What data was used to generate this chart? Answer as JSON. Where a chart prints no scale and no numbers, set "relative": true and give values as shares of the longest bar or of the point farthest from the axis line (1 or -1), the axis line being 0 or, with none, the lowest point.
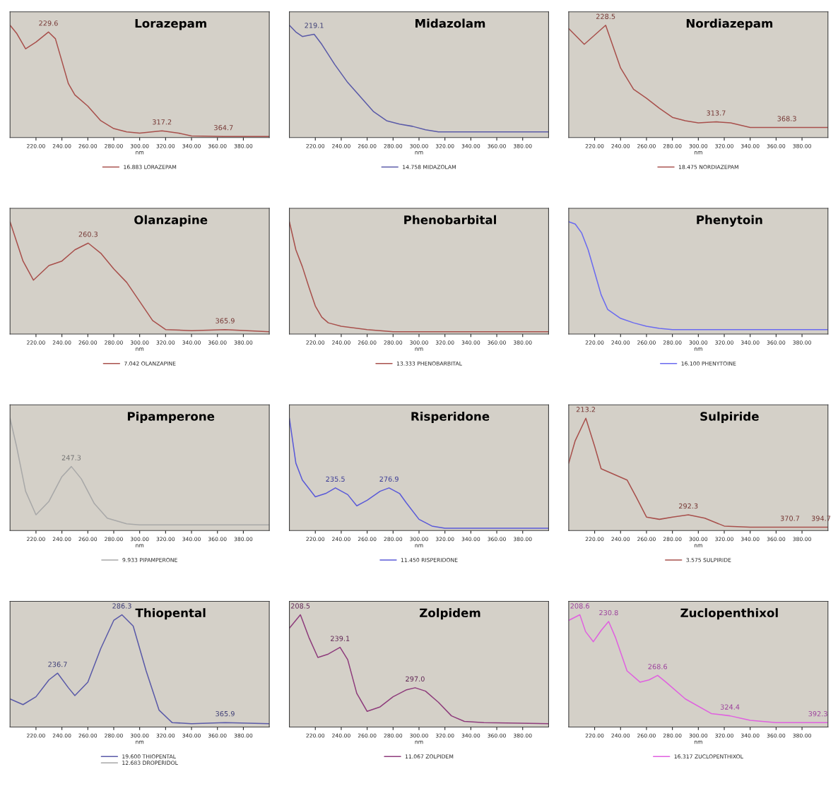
{
  "chart_data": [
    {
      "type": "line",
      "title": "Lorazepam",
      "xlabel": "nm",
      "relative": true,
      "xlim": [
        200,
        400
      ],
      "xticks": [
        {
          "value": 220,
          "label": "220.00"
        },
        {
          "value": 240,
          "label": "240.00"
        },
        {
          "value": 260,
          "label": "260.00"
        },
        {
          "value": 280,
          "label": "280.00"
        },
        {
          "value": 300,
          "label": "300.00"
        },
        {
          "value": 320,
          "label": "320.00"
        },
        {
          "value": 340,
          "label": "340.00"
        },
        {
          "value": 360,
          "label": "360.00"
        },
        {
          "value": 380,
          "label": "380.00"
        }
      ],
      "legend": "bottom",
      "series": [
        {
          "name": "16.883 LORAZEPAM",
          "color": "#a8504c",
          "x": [
            200,
            205,
            212,
            220,
            229.6,
            235,
            240,
            245,
            250,
            260,
            270,
            280,
            290,
            300,
            317.2,
            330,
            340,
            364.7,
            400
          ],
          "values": [
            1.0,
            0.93,
            0.79,
            0.85,
            0.94,
            0.88,
            0.68,
            0.48,
            0.38,
            0.28,
            0.15,
            0.08,
            0.05,
            0.04,
            0.06,
            0.04,
            0.015,
            0.01,
            0.01
          ]
        }
      ],
      "annotations": [
        {
          "text": "229.6",
          "x": 229.6,
          "y": 0.94
        },
        {
          "text": "317.2",
          "x": 317.2,
          "y": 0.06
        },
        {
          "text": "364.7",
          "x": 364.7,
          "y": 0.01
        }
      ]
    },
    {
      "type": "line",
      "title": "Midazolam",
      "xlabel": "nm",
      "relative": true,
      "xlim": [
        200,
        400
      ],
      "xticks": [
        {
          "value": 220,
          "label": "220.00"
        },
        {
          "value": 240,
          "label": "240.00"
        },
        {
          "value": 260,
          "label": "260.00"
        },
        {
          "value": 280,
          "label": "280.00"
        },
        {
          "value": 300,
          "label": "300.00"
        },
        {
          "value": 320,
          "label": "320.00"
        },
        {
          "value": 340,
          "label": "340.00"
        },
        {
          "value": 360,
          "label": "360.00"
        },
        {
          "value": 380,
          "label": "380.00"
        }
      ],
      "legend": "bottom",
      "series": [
        {
          "name": "14.758 MIDAZOLAM",
          "color": "#5a5aa8",
          "x": [
            200,
            205,
            210,
            219.1,
            225,
            235,
            245,
            255,
            265,
            275,
            285,
            295,
            305,
            315,
            400
          ],
          "values": [
            1.0,
            0.94,
            0.9,
            0.92,
            0.83,
            0.65,
            0.49,
            0.36,
            0.23,
            0.15,
            0.12,
            0.1,
            0.07,
            0.05,
            0.05
          ]
        }
      ],
      "annotations": [
        {
          "text": "219.1",
          "x": 219.1,
          "y": 0.92
        }
      ]
    },
    {
      "type": "line",
      "title": "Nordiazepam",
      "xlabel": "nm",
      "relative": true,
      "xlim": [
        200,
        400
      ],
      "xticks": [
        {
          "value": 220,
          "label": "220.00"
        },
        {
          "value": 240,
          "label": "240.00"
        },
        {
          "value": 260,
          "label": "260.00"
        },
        {
          "value": 280,
          "label": "280.00"
        },
        {
          "value": 300,
          "label": "300.00"
        },
        {
          "value": 320,
          "label": "320.00"
        },
        {
          "value": 340,
          "label": "340.00"
        },
        {
          "value": 360,
          "label": "360.00"
        },
        {
          "value": 380,
          "label": "380.00"
        }
      ],
      "legend": "bottom",
      "series": [
        {
          "name": "18.475 NORDIAZEPAM",
          "color": "#a8504c",
          "x": [
            200,
            212,
            228.5,
            240,
            250,
            260,
            270,
            280,
            290,
            300,
            313.7,
            325,
            340,
            368.3,
            400
          ],
          "values": [
            0.97,
            0.83,
            1.0,
            0.62,
            0.43,
            0.35,
            0.26,
            0.18,
            0.15,
            0.13,
            0.14,
            0.13,
            0.09,
            0.09,
            0.09
          ]
        }
      ],
      "annotations": [
        {
          "text": "228.5",
          "x": 228.5,
          "y": 1.0
        },
        {
          "text": "313.7",
          "x": 313.7,
          "y": 0.14
        },
        {
          "text": "368.3",
          "x": 368.3,
          "y": 0.09
        }
      ]
    },
    {
      "type": "line",
      "title": "Olanzapine",
      "xlabel": "nm",
      "relative": true,
      "xlim": [
        200,
        400
      ],
      "xticks": [
        {
          "value": 220,
          "label": "220.00"
        },
        {
          "value": 240,
          "label": "240.00"
        },
        {
          "value": 260,
          "label": "260.00"
        },
        {
          "value": 280,
          "label": "280.00"
        },
        {
          "value": 300,
          "label": "300.00"
        },
        {
          "value": 320,
          "label": "320.00"
        },
        {
          "value": 340,
          "label": "340.00"
        },
        {
          "value": 360,
          "label": "360.00"
        },
        {
          "value": 380,
          "label": "380.00"
        }
      ],
      "legend": "bottom",
      "series": [
        {
          "name": "7.042 OLANZAPINE",
          "color": "#a8504c",
          "x": [
            200,
            210,
            218,
            230,
            240,
            250,
            260.3,
            270,
            280,
            290,
            300,
            310,
            320,
            340,
            365.9,
            400
          ],
          "values": [
            1.0,
            0.65,
            0.48,
            0.61,
            0.65,
            0.75,
            0.81,
            0.72,
            0.58,
            0.46,
            0.29,
            0.12,
            0.04,
            0.03,
            0.04,
            0.02
          ]
        }
      ],
      "annotations": [
        {
          "text": "260.3",
          "x": 260.3,
          "y": 0.81
        },
        {
          "text": "365.9",
          "x": 365.9,
          "y": 0.04
        }
      ]
    },
    {
      "type": "line",
      "title": "Phenobarbital",
      "xlabel": "nm",
      "relative": true,
      "xlim": [
        200,
        400
      ],
      "xticks": [
        {
          "value": 220,
          "label": "220.00"
        },
        {
          "value": 240,
          "label": "240.00"
        },
        {
          "value": 260,
          "label": "260.00"
        },
        {
          "value": 280,
          "label": "280.00"
        },
        {
          "value": 300,
          "label": "300.00"
        },
        {
          "value": 320,
          "label": "320.00"
        },
        {
          "value": 340,
          "label": "340.00"
        },
        {
          "value": 360,
          "label": "360.00"
        },
        {
          "value": 380,
          "label": "380.00"
        }
      ],
      "legend": "bottom",
      "series": [
        {
          "name": "13.333 PHENOBARBITAL",
          "color": "#a8504c",
          "x": [
            200,
            205,
            210,
            215,
            220,
            225,
            230,
            240,
            260,
            280,
            400
          ],
          "values": [
            1.0,
            0.75,
            0.6,
            0.42,
            0.25,
            0.15,
            0.1,
            0.07,
            0.04,
            0.02,
            0.02
          ]
        }
      ]
    },
    {
      "type": "line",
      "title": "Phenytoin",
      "xlabel": "nm",
      "relative": true,
      "xlim": [
        200,
        400
      ],
      "xticks": [
        {
          "value": 220,
          "label": "220.00"
        },
        {
          "value": 240,
          "label": "240.00"
        },
        {
          "value": 260,
          "label": "260.00"
        },
        {
          "value": 280,
          "label": "280.00"
        },
        {
          "value": 300,
          "label": "300.00"
        },
        {
          "value": 320,
          "label": "320.00"
        },
        {
          "value": 340,
          "label": "340.00"
        },
        {
          "value": 360,
          "label": "360.00"
        },
        {
          "value": 380,
          "label": "380.00"
        }
      ],
      "legend": "bottom",
      "series": [
        {
          "name": "16.100 PHENYTOINE",
          "color": "#6a6af0",
          "x": [
            200,
            205,
            210,
            215,
            220,
            225,
            230,
            240,
            250,
            260,
            270,
            280,
            400
          ],
          "values": [
            1.0,
            0.98,
            0.9,
            0.75,
            0.55,
            0.35,
            0.22,
            0.14,
            0.1,
            0.07,
            0.05,
            0.04,
            0.04
          ]
        }
      ]
    },
    {
      "type": "line",
      "title": "Pipamperone",
      "xlabel": "nm",
      "relative": true,
      "xlim": [
        200,
        400
      ],
      "xticks": [
        {
          "value": 220,
          "label": "220.00"
        },
        {
          "value": 240,
          "label": "240.00"
        },
        {
          "value": 260,
          "label": "260.00"
        },
        {
          "value": 280,
          "label": "280.00"
        },
        {
          "value": 300,
          "label": "300.00"
        },
        {
          "value": 320,
          "label": "320.00"
        },
        {
          "value": 340,
          "label": "340.00"
        },
        {
          "value": 360,
          "label": "360.00"
        },
        {
          "value": 380,
          "label": "380.00"
        }
      ],
      "legend": "bottom",
      "series": [
        {
          "name": "9.933 PIPAMPERONE",
          "color": "#a8a8a8",
          "x": [
            200,
            205,
            212,
            220,
            230,
            240,
            247.3,
            255,
            265,
            275,
            290,
            300,
            400
          ],
          "values": [
            1.0,
            0.75,
            0.35,
            0.14,
            0.26,
            0.48,
            0.57,
            0.46,
            0.24,
            0.11,
            0.06,
            0.05,
            0.05
          ]
        }
      ],
      "annotations": [
        {
          "text": "247.3",
          "x": 247.3,
          "y": 0.57
        }
      ]
    },
    {
      "type": "line",
      "title": "Risperidone",
      "xlabel": "nm",
      "relative": true,
      "xlim": [
        200,
        400
      ],
      "xticks": [
        {
          "value": 220,
          "label": "220.00"
        },
        {
          "value": 240,
          "label": "240.00"
        },
        {
          "value": 260,
          "label": "260.00"
        },
        {
          "value": 280,
          "label": "280.00"
        },
        {
          "value": 300,
          "label": "300.00"
        },
        {
          "value": 320,
          "label": "320.00"
        },
        {
          "value": 340,
          "label": "340.00"
        },
        {
          "value": 360,
          "label": "360.00"
        },
        {
          "value": 380,
          "label": "380.00"
        }
      ],
      "legend": "bottom",
      "series": [
        {
          "name": "11.450 RISPERIDONE",
          "color": "#5a5ad8",
          "x": [
            200,
            205,
            210,
            220,
            228,
            235.5,
            245,
            252,
            260,
            270,
            276.9,
            285,
            290,
            300,
            310,
            320,
            400
          ],
          "values": [
            1.0,
            0.6,
            0.45,
            0.3,
            0.33,
            0.38,
            0.32,
            0.22,
            0.27,
            0.35,
            0.38,
            0.33,
            0.25,
            0.1,
            0.04,
            0.02,
            0.02
          ]
        }
      ],
      "annotations": [
        {
          "text": "235.5",
          "x": 235.5,
          "y": 0.38
        },
        {
          "text": "276.9",
          "x": 276.9,
          "y": 0.38
        }
      ]
    },
    {
      "type": "line",
      "title": "Sulpiride",
      "xlabel": "nm",
      "relative": true,
      "xlim": [
        200,
        400
      ],
      "xticks": [
        {
          "value": 220,
          "label": "220.00"
        },
        {
          "value": 240,
          "label": "240.00"
        },
        {
          "value": 260,
          "label": "260.00"
        },
        {
          "value": 280,
          "label": "280.00"
        },
        {
          "value": 300,
          "label": "300.00"
        },
        {
          "value": 320,
          "label": "320.00"
        },
        {
          "value": 340,
          "label": "340.00"
        },
        {
          "value": 360,
          "label": "360.00"
        },
        {
          "value": 380,
          "label": "380.00"
        }
      ],
      "legend": "bottom",
      "series": [
        {
          "name": "3.575 SULPIRIDE",
          "color": "#a8504c",
          "x": [
            200,
            205,
            213.2,
            220,
            225,
            235,
            245,
            252,
            260,
            270,
            280,
            292.3,
            305,
            320,
            340,
            370.7,
            394.7,
            400
          ],
          "values": [
            0.6,
            0.8,
            1.0,
            0.75,
            0.55,
            0.5,
            0.45,
            0.3,
            0.12,
            0.1,
            0.12,
            0.14,
            0.11,
            0.04,
            0.03,
            0.03,
            0.03,
            0.03
          ]
        }
      ],
      "annotations": [
        {
          "text": "213.2",
          "x": 213.2,
          "y": 1.0
        },
        {
          "text": "292.3",
          "x": 292.3,
          "y": 0.14
        },
        {
          "text": "370.7",
          "x": 370.7,
          "y": 0.03
        },
        {
          "text": "394.7",
          "x": 394.7,
          "y": 0.03
        }
      ]
    },
    {
      "type": "line",
      "title": "Thiopental",
      "xlabel": "nm",
      "relative": true,
      "xlim": [
        200,
        400
      ],
      "xticks": [
        {
          "value": 220,
          "label": "220.00"
        },
        {
          "value": 240,
          "label": "240.00"
        },
        {
          "value": 260,
          "label": "260.00"
        },
        {
          "value": 280,
          "label": "280.00"
        },
        {
          "value": 300,
          "label": "300.00"
        },
        {
          "value": 320,
          "label": "320.00"
        },
        {
          "value": 340,
          "label": "340.00"
        },
        {
          "value": 360,
          "label": "360.00"
        },
        {
          "value": 380,
          "label": "380.00"
        }
      ],
      "legend": "bottom",
      "series": [
        {
          "name": "19.600 THIOPENTAL",
          "color": "#5a5aa8",
          "x": [
            200,
            210,
            220,
            230,
            236.7,
            245,
            250,
            260,
            270,
            280,
            286.3,
            295,
            305,
            315,
            325,
            340,
            365.9,
            400
          ],
          "values": [
            0.25,
            0.2,
            0.27,
            0.42,
            0.48,
            0.35,
            0.28,
            0.4,
            0.7,
            0.95,
            1.0,
            0.9,
            0.5,
            0.15,
            0.04,
            0.03,
            0.04,
            0.03
          ]
        },
        {
          "name": "12.683 DROPERIDOL",
          "color": "#a8a8a8"
        }
      ],
      "annotations": [
        {
          "text": "236.7",
          "x": 236.7,
          "y": 0.48
        },
        {
          "text": "286.3",
          "x": 286.3,
          "y": 1.0
        },
        {
          "text": "365.9",
          "x": 365.9,
          "y": 0.04
        }
      ]
    },
    {
      "type": "line",
      "title": "Zolpidem",
      "xlabel": "nm",
      "relative": true,
      "xlim": [
        200,
        400
      ],
      "xticks": [
        {
          "value": 220,
          "label": "220.00"
        },
        {
          "value": 240,
          "label": "240.00"
        },
        {
          "value": 260,
          "label": "260.00"
        },
        {
          "value": 280,
          "label": "280.00"
        },
        {
          "value": 300,
          "label": "300.00"
        },
        {
          "value": 320,
          "label": "320.00"
        },
        {
          "value": 340,
          "label": "340.00"
        },
        {
          "value": 360,
          "label": "360.00"
        },
        {
          "value": 380,
          "label": "380.00"
        }
      ],
      "legend": "bottom",
      "series": [
        {
          "name": "11.067 ZOLPIDEM",
          "color": "#8e3c7c",
          "x": [
            200,
            208.5,
            215,
            222,
            230,
            239.1,
            245,
            252,
            260,
            270,
            280,
            290,
            297.0,
            305,
            315,
            325,
            335,
            350,
            400
          ],
          "values": [
            0.88,
            1.0,
            0.8,
            0.62,
            0.65,
            0.71,
            0.6,
            0.3,
            0.14,
            0.18,
            0.27,
            0.33,
            0.35,
            0.32,
            0.22,
            0.1,
            0.05,
            0.04,
            0.03
          ]
        }
      ],
      "annotations": [
        {
          "text": "208.5",
          "x": 208.5,
          "y": 1.0
        },
        {
          "text": "239.1",
          "x": 239.1,
          "y": 0.71
        },
        {
          "text": "297.0",
          "x": 297.0,
          "y": 0.35
        }
      ]
    },
    {
      "type": "line",
      "title": "Zuclopenthixol",
      "xlabel": "nm",
      "relative": true,
      "xlim": [
        200,
        400
      ],
      "xticks": [
        {
          "value": 220,
          "label": "220.00"
        },
        {
          "value": 240,
          "label": "240.00"
        },
        {
          "value": 260,
          "label": "260.00"
        },
        {
          "value": 280,
          "label": "280.00"
        },
        {
          "value": 300,
          "label": "300.00"
        },
        {
          "value": 320,
          "label": "320.00"
        },
        {
          "value": 340,
          "label": "340.00"
        },
        {
          "value": 360,
          "label": "360.00"
        },
        {
          "value": 380,
          "label": "380.00"
        }
      ],
      "legend": "bottom",
      "series": [
        {
          "name": "16.317 ZUCLOPENTHIXOL",
          "color": "#e060e0",
          "x": [
            200,
            208.6,
            213,
            219,
            225,
            230.8,
            236,
            245,
            255,
            262,
            268.6,
            275,
            290,
            310,
            324.4,
            340,
            360,
            392.3,
            400
          ],
          "values": [
            0.95,
            1.0,
            0.85,
            0.76,
            0.86,
            0.94,
            0.8,
            0.5,
            0.4,
            0.42,
            0.46,
            0.4,
            0.25,
            0.12,
            0.1,
            0.06,
            0.04,
            0.04,
            0.04
          ]
        }
      ],
      "annotations": [
        {
          "text": "208.6",
          "x": 208.6,
          "y": 1.0
        },
        {
          "text": "230.8",
          "x": 230.8,
          "y": 0.94
        },
        {
          "text": "268.6",
          "x": 268.6,
          "y": 0.46
        },
        {
          "text": "324.4",
          "x": 324.4,
          "y": 0.1
        },
        {
          "text": "392.3",
          "x": 392.3,
          "y": 0.04
        }
      ]
    }
  ]
}
